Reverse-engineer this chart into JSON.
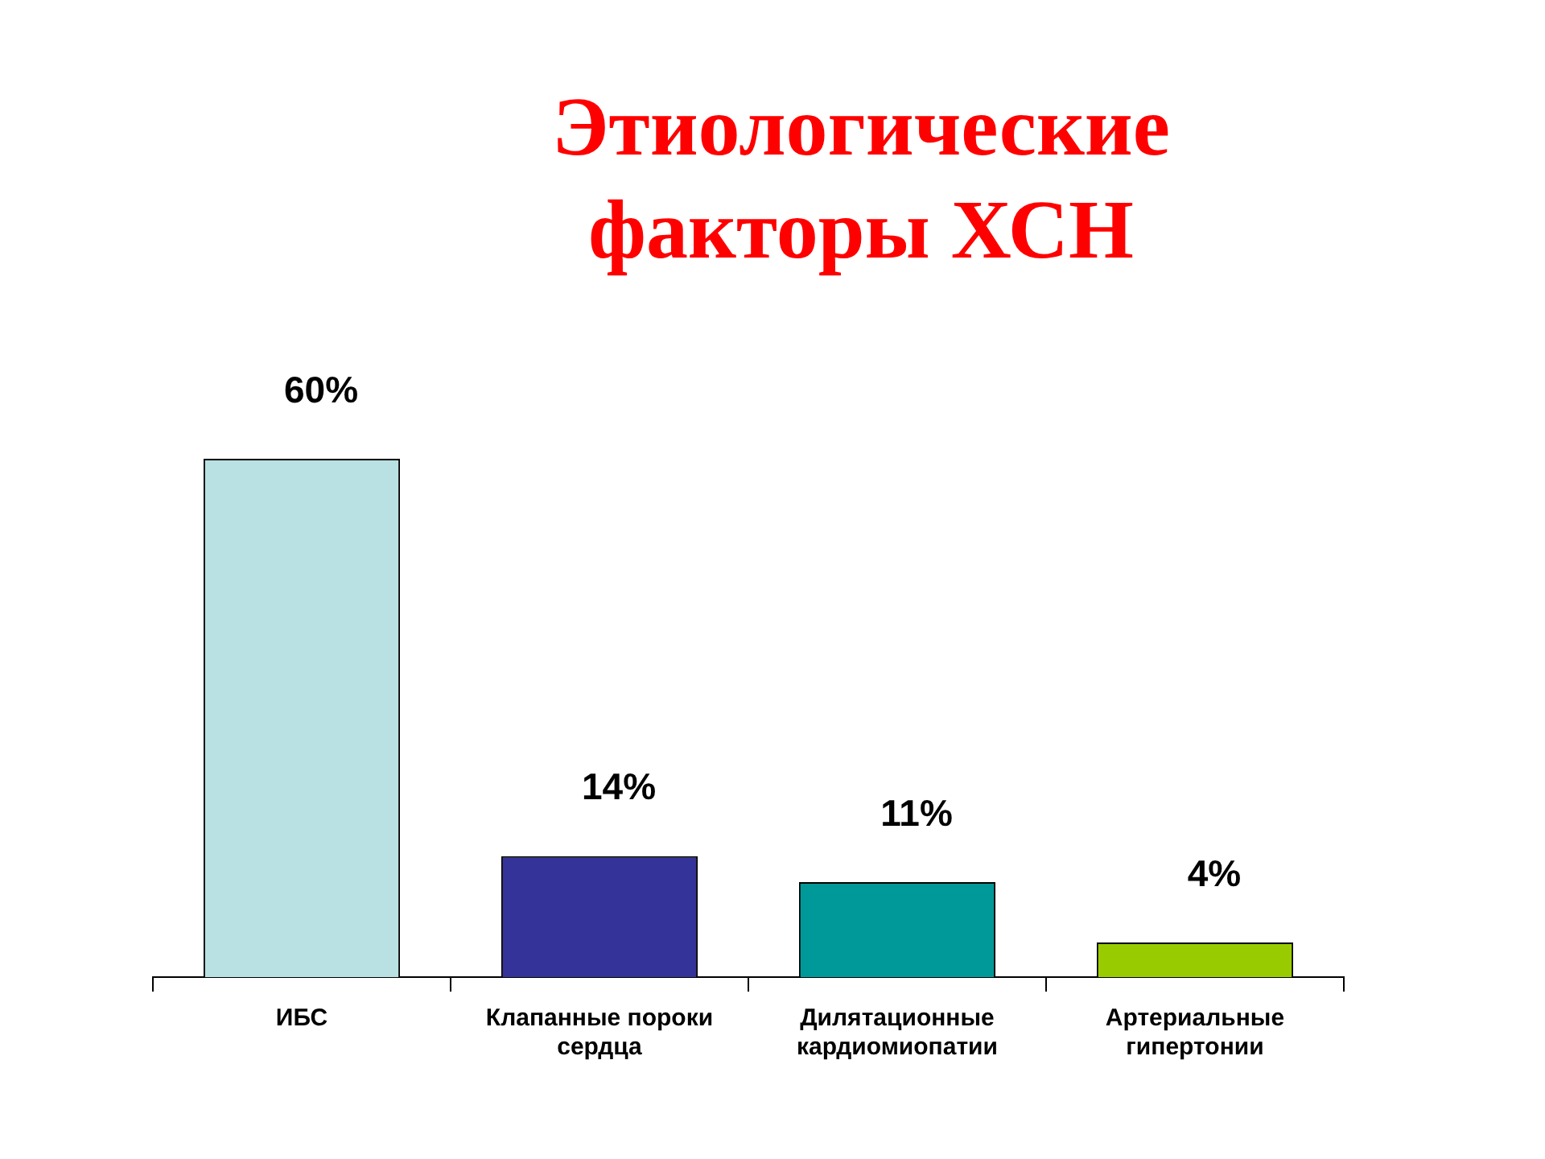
{
  "chart_data": {
    "type": "bar",
    "title": "Этиологические\nфакторы ХСН",
    "categories": [
      "ИБС",
      "Клапанные пороки сердца",
      "Дилятационные кардиомиопатии",
      "Артериальные гипертонии"
    ],
    "values": [
      60,
      14,
      11,
      4
    ],
    "colors": [
      "#b9e0e3",
      "#333399",
      "#009999",
      "#99cc00"
    ],
    "value_labels": [
      "60%",
      "14%",
      "11%",
      "4%"
    ]
  }
}
